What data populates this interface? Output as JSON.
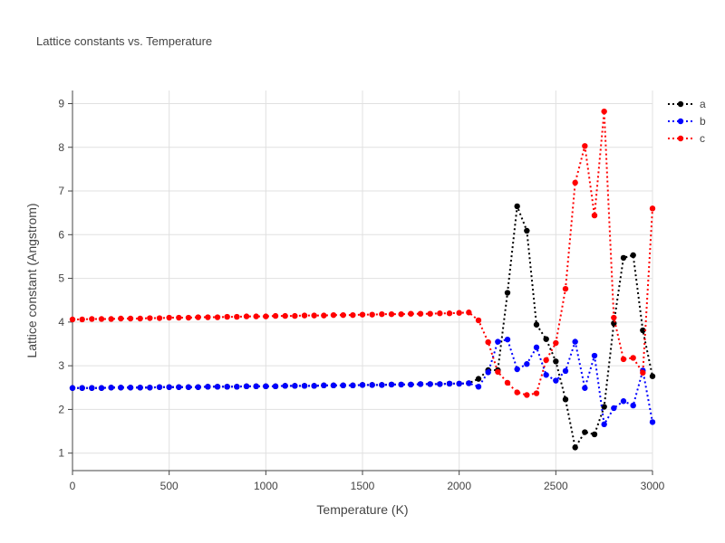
{
  "chart_data": {
    "type": "line",
    "title": "Lattice constants vs. Temperature",
    "xlabel": "Temperature (K)",
    "ylabel": "Lattice constant (Angstrom)",
    "xlim": [
      0,
      3000
    ],
    "ylim": [
      0.6,
      9.3
    ],
    "xticks": [
      0,
      500,
      1000,
      1500,
      2000,
      2500,
      3000
    ],
    "yticks": [
      1,
      2,
      3,
      4,
      5,
      6,
      7,
      8,
      9
    ],
    "grid": true,
    "legend_position": "top-right",
    "x": [
      0,
      50,
      100,
      150,
      200,
      250,
      300,
      350,
      400,
      450,
      500,
      550,
      600,
      650,
      700,
      750,
      800,
      850,
      900,
      950,
      1000,
      1050,
      1100,
      1150,
      1200,
      1250,
      1300,
      1350,
      1400,
      1450,
      1500,
      1550,
      1600,
      1650,
      1700,
      1750,
      1800,
      1850,
      1900,
      1950,
      2000,
      2050,
      2100,
      2150,
      2200,
      2250,
      2300,
      2350,
      2400,
      2450,
      2500,
      2550,
      2600,
      2650,
      2700,
      2750,
      2800,
      2850,
      2900,
      2950,
      3000
    ],
    "series": [
      {
        "name": "a",
        "color": "#000000",
        "values": [
          2.49,
          2.49,
          2.49,
          2.49,
          2.5,
          2.5,
          2.5,
          2.5,
          2.5,
          2.51,
          2.51,
          2.51,
          2.51,
          2.51,
          2.52,
          2.52,
          2.52,
          2.52,
          2.53,
          2.53,
          2.53,
          2.53,
          2.54,
          2.54,
          2.54,
          2.54,
          2.55,
          2.55,
          2.55,
          2.55,
          2.56,
          2.56,
          2.56,
          2.57,
          2.57,
          2.57,
          2.58,
          2.58,
          2.58,
          2.59,
          2.59,
          2.6,
          2.7,
          2.9,
          2.9,
          4.67,
          6.65,
          6.09,
          3.94,
          3.61,
          3.1,
          2.23,
          1.13,
          1.48,
          1.43,
          2.06,
          3.97,
          5.47,
          5.53,
          3.81,
          2.76
        ]
      },
      {
        "name": "b",
        "color": "#0000ff",
        "values": [
          2.49,
          2.49,
          2.49,
          2.49,
          2.5,
          2.5,
          2.5,
          2.5,
          2.5,
          2.51,
          2.51,
          2.51,
          2.51,
          2.51,
          2.52,
          2.52,
          2.52,
          2.52,
          2.53,
          2.53,
          2.53,
          2.53,
          2.54,
          2.54,
          2.54,
          2.54,
          2.55,
          2.55,
          2.55,
          2.55,
          2.56,
          2.56,
          2.56,
          2.57,
          2.57,
          2.57,
          2.58,
          2.58,
          2.58,
          2.59,
          2.59,
          2.6,
          2.52,
          2.85,
          3.55,
          3.6,
          2.92,
          3.04,
          3.42,
          2.79,
          2.66,
          2.88,
          3.55,
          2.49,
          3.23,
          1.66,
          2.03,
          2.19,
          2.09,
          2.89,
          1.71
        ]
      },
      {
        "name": "c",
        "color": "#ff0000",
        "values": [
          4.06,
          4.06,
          4.07,
          4.07,
          4.07,
          4.08,
          4.08,
          4.08,
          4.09,
          4.09,
          4.1,
          4.1,
          4.1,
          4.11,
          4.11,
          4.11,
          4.12,
          4.12,
          4.13,
          4.13,
          4.13,
          4.14,
          4.14,
          4.14,
          4.15,
          4.15,
          4.15,
          4.16,
          4.16,
          4.16,
          4.17,
          4.17,
          4.18,
          4.18,
          4.18,
          4.19,
          4.19,
          4.19,
          4.2,
          4.2,
          4.21,
          4.22,
          4.04,
          3.54,
          2.86,
          2.61,
          2.39,
          2.33,
          2.37,
          3.13,
          3.52,
          4.76,
          7.19,
          8.03,
          6.44,
          8.82,
          4.1,
          3.15,
          3.18,
          2.84,
          6.6
        ]
      }
    ]
  }
}
